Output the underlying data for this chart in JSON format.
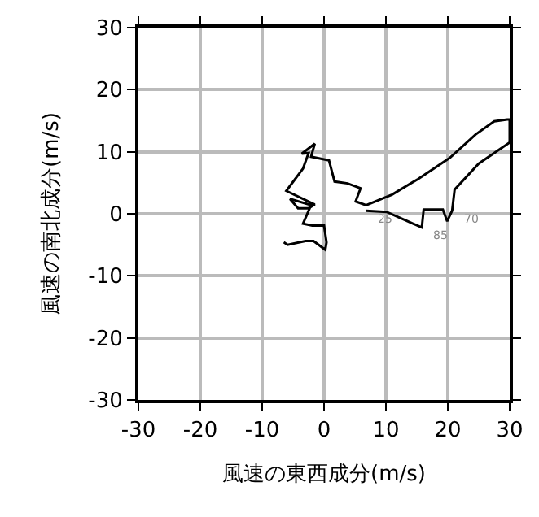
{
  "chart_data": {
    "type": "line",
    "xlabel": "風速の東西成分(m/s)",
    "ylabel": "風速の南北成分(m/s)",
    "x": [
      -6.5,
      -5.9,
      -3.0,
      -1.7,
      0.2,
      0.4,
      0,
      -1.9,
      -3.4,
      -2.1,
      -5.5,
      -4.2,
      -2.5,
      -1.5,
      -6.1,
      -3.4,
      -2.5,
      -3.6,
      -1.5,
      -2.1,
      0.8,
      1.7,
      3.8,
      5.9,
      5.1,
      6.8,
      11.0,
      15.2,
      20.3,
      24.5,
      27.5,
      29.6,
      30,
      30,
      25.0,
      21.1,
      20.7,
      19.9,
      19.2,
      16.1,
      15.8,
      13.5,
      10.1,
      6.8
    ],
    "series": [
      {
        "color": "#000000",
        "values": [
          -4.6,
          -5.0,
          -4.4,
          -4.4,
          -5.8,
          -4.6,
          -1.9,
          -1.9,
          -1.6,
          1.4,
          2.4,
          0.9,
          0.9,
          1.5,
          3.7,
          7.3,
          9.8,
          9.7,
          11.3,
          9.2,
          8.6,
          5.2,
          4.9,
          4.1,
          2.0,
          1.4,
          3.1,
          5.6,
          9.0,
          12.8,
          14.9,
          15.2,
          15.2,
          11.5,
          8.1,
          3.9,
          0.5,
          -1.2,
          0.7,
          0.7,
          -2.2,
          -1.2,
          0.3,
          0.5
        ]
      }
    ],
    "xlim": [
      -30,
      30
    ],
    "ylim": [
      -30,
      30
    ],
    "xticks": [
      -30,
      -20,
      -10,
      0,
      10,
      20,
      30
    ],
    "yticks": [
      -30,
      -20,
      -10,
      0,
      10,
      20,
      30
    ],
    "grid": true,
    "marker": "none",
    "line_style": "solid",
    "annotations": [
      {
        "text": "25",
        "x": 6.8,
        "y": 0.5
      },
      {
        "text": "85",
        "x": 15.8,
        "y": -2.2
      },
      {
        "text": "70",
        "x": 20.7,
        "y": 0.5
      }
    ]
  }
}
